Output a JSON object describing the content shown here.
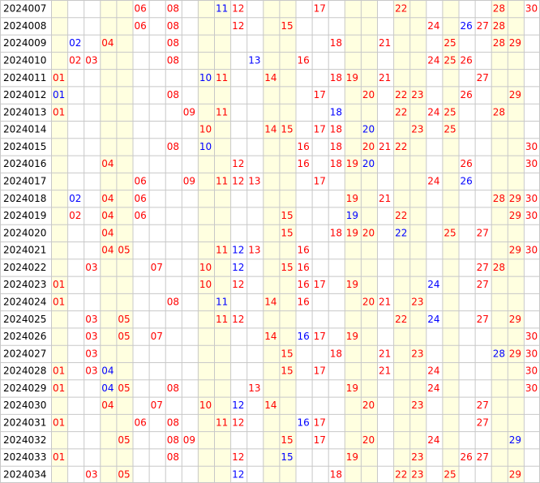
{
  "chart_data": {
    "type": "table",
    "title": "",
    "columns": [
      "01",
      "02",
      "03",
      "04",
      "05",
      "06",
      "07",
      "08",
      "09",
      "10",
      "11",
      "12",
      "13",
      "14",
      "15",
      "16",
      "17",
      "18",
      "19",
      "20",
      "21",
      "22",
      "23",
      "24",
      "25",
      "26",
      "27",
      "28",
      "29",
      "30"
    ],
    "column_bands": "yellow background on columns 01, 04-05, 10-11, 14-15, 19-20, 22-23, 25, 28-29; white on others",
    "colors": {
      "red": "#ff0000",
      "blue": "#0000ff",
      "band": "#ffffe0",
      "grid": "#c8c8c8"
    },
    "rows": [
      {
        "issue": "2024007",
        "red": [
          "06",
          "08",
          "12",
          "17",
          "22",
          "28",
          "30"
        ],
        "blue": [
          "11"
        ]
      },
      {
        "issue": "2024008",
        "red": [
          "06",
          "08",
          "12",
          "15",
          "24",
          "27",
          "28"
        ],
        "blue": [
          "26"
        ]
      },
      {
        "issue": "2024009",
        "red": [
          "04",
          "08",
          "18",
          "21",
          "25",
          "28",
          "29"
        ],
        "blue": [
          "02"
        ]
      },
      {
        "issue": "2024010",
        "red": [
          "02",
          "03",
          "08",
          "16",
          "24",
          "25",
          "26"
        ],
        "blue": [
          "13"
        ]
      },
      {
        "issue": "2024011",
        "red": [
          "01",
          "11",
          "14",
          "18",
          "19",
          "21",
          "27"
        ],
        "blue": [
          "10"
        ]
      },
      {
        "issue": "2024012",
        "red": [
          "08",
          "17",
          "20",
          "22",
          "23",
          "26",
          "29"
        ],
        "blue": [
          "01"
        ]
      },
      {
        "issue": "2024013",
        "red": [
          "01",
          "09",
          "11",
          "22",
          "24",
          "25",
          "28"
        ],
        "blue": [
          "18"
        ]
      },
      {
        "issue": "2024014",
        "red": [
          "10",
          "14",
          "15",
          "17",
          "18",
          "23",
          "25"
        ],
        "blue": [
          "20"
        ]
      },
      {
        "issue": "2024015",
        "red": [
          "08",
          "16",
          "18",
          "20",
          "21",
          "22",
          "30"
        ],
        "blue": [
          "10"
        ]
      },
      {
        "issue": "2024016",
        "red": [
          "04",
          "12",
          "16",
          "18",
          "19",
          "26",
          "30"
        ],
        "blue": [
          "20"
        ]
      },
      {
        "issue": "2024017",
        "red": [
          "06",
          "09",
          "11",
          "12",
          "13",
          "17",
          "24"
        ],
        "blue": [
          "26"
        ]
      },
      {
        "issue": "2024018",
        "red": [
          "04",
          "06",
          "19",
          "21",
          "28",
          "29",
          "30"
        ],
        "blue": [
          "02"
        ]
      },
      {
        "issue": "2024019",
        "red": [
          "02",
          "04",
          "06",
          "15",
          "22",
          "29",
          "30"
        ],
        "blue": [
          "19"
        ]
      },
      {
        "issue": "2024020",
        "red": [
          "04",
          "15",
          "18",
          "19",
          "20",
          "25",
          "27"
        ],
        "blue": [
          "22"
        ]
      },
      {
        "issue": "2024021",
        "red": [
          "04",
          "05",
          "11",
          "13",
          "16",
          "29",
          "30"
        ],
        "blue": [
          "12"
        ]
      },
      {
        "issue": "2024022",
        "red": [
          "03",
          "07",
          "10",
          "15",
          "16",
          "27",
          "28"
        ],
        "blue": [
          "12"
        ]
      },
      {
        "issue": "2024023",
        "red": [
          "01",
          "10",
          "12",
          "16",
          "17",
          "19",
          "27"
        ],
        "blue": [
          "24"
        ]
      },
      {
        "issue": "2024024",
        "red": [
          "01",
          "08",
          "14",
          "16",
          "20",
          "21",
          "23"
        ],
        "blue": [
          "11"
        ]
      },
      {
        "issue": "2024025",
        "red": [
          "03",
          "05",
          "11",
          "12",
          "22",
          "27",
          "29"
        ],
        "blue": [
          "24"
        ]
      },
      {
        "issue": "2024026",
        "red": [
          "03",
          "05",
          "07",
          "14",
          "17",
          "19",
          "30"
        ],
        "blue": [
          "16"
        ]
      },
      {
        "issue": "2024027",
        "red": [
          "03",
          "15",
          "18",
          "21",
          "23",
          "29",
          "30"
        ],
        "blue": [
          "28"
        ]
      },
      {
        "issue": "2024028",
        "red": [
          "01",
          "03",
          "15",
          "17",
          "21",
          "24",
          "30"
        ],
        "blue": [
          "04"
        ]
      },
      {
        "issue": "2024029",
        "red": [
          "01",
          "05",
          "08",
          "13",
          "19",
          "24",
          "30"
        ],
        "blue": [
          "04"
        ]
      },
      {
        "issue": "2024030",
        "red": [
          "04",
          "07",
          "10",
          "14",
          "20",
          "23",
          "27"
        ],
        "blue": [
          "12"
        ]
      },
      {
        "issue": "2024031",
        "red": [
          "01",
          "06",
          "08",
          "11",
          "12",
          "17",
          "27"
        ],
        "blue": [
          "16"
        ]
      },
      {
        "issue": "2024032",
        "red": [
          "05",
          "08",
          "09",
          "15",
          "17",
          "20",
          "24"
        ],
        "blue": [
          "29"
        ]
      },
      {
        "issue": "2024033",
        "red": [
          "01",
          "08",
          "12",
          "19",
          "23",
          "26",
          "27"
        ],
        "blue": [
          "15"
        ]
      },
      {
        "issue": "2024034",
        "red": [
          "03",
          "05",
          "12",
          "18",
          "22",
          "23",
          "25",
          "29"
        ],
        "blue": [
          "12"
        ]
      }
    ]
  }
}
